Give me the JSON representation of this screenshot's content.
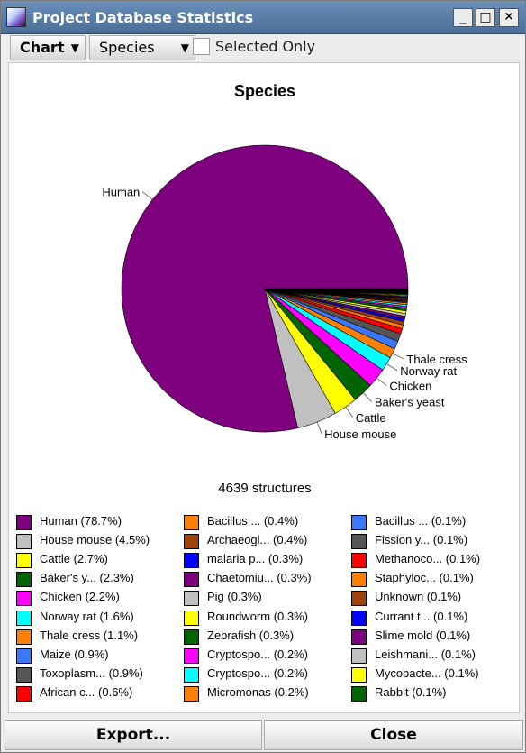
{
  "window": {
    "title": "Project Database Statistics",
    "minimize_glyph": "_",
    "maximize_glyph": "□",
    "close_glyph": "✕"
  },
  "toolbar": {
    "chart_dropdown": "Chart",
    "species_dropdown": "Species",
    "dropdown_arrow": "▼",
    "selected_only_label": "Selected Only",
    "selected_only_checked": false
  },
  "chart_data": {
    "type": "pie",
    "title": "Species",
    "total_label": "4639 structures",
    "slices": [
      {
        "label": "Human",
        "legend": "Human (78.7%)",
        "value": 78.7,
        "color": "#7f007f"
      },
      {
        "label": "House mouse",
        "legend": "House mouse (4.5%)",
        "value": 4.5,
        "color": "#c0c0c0"
      },
      {
        "label": "Cattle",
        "legend": "Cattle (2.7%)",
        "value": 2.7,
        "color": "#ffff00"
      },
      {
        "label": "Baker's yeast",
        "legend": "Baker's y... (2.3%)",
        "value": 2.3,
        "color": "#006400"
      },
      {
        "label": "Chicken",
        "legend": "Chicken (2.2%)",
        "value": 2.2,
        "color": "#ff00ff"
      },
      {
        "label": "Norway rat",
        "legend": "Norway rat (1.6%)",
        "value": 1.6,
        "color": "#00ffff"
      },
      {
        "label": "Thale cress",
        "legend": "Thale cress (1.1%)",
        "value": 1.1,
        "color": "#ff8000"
      },
      {
        "label": "Maize",
        "legend": "Maize (0.9%)",
        "value": 0.9,
        "color": "#3a78ff"
      },
      {
        "label": "Toxoplasma",
        "legend": "Toxoplasm... (0.9%)",
        "value": 0.9,
        "color": "#555555"
      },
      {
        "label": "African c",
        "legend": "African c... (0.6%)",
        "value": 0.6,
        "color": "#ff0000"
      },
      {
        "label": "Bacillus",
        "legend": "Bacillus ... (0.4%)",
        "value": 0.4,
        "color": "#ff8000"
      },
      {
        "label": "Archaeogl",
        "legend": "Archaeogl... (0.4%)",
        "value": 0.4,
        "color": "#a0400a"
      },
      {
        "label": "malaria p",
        "legend": "malaria p... (0.3%)",
        "value": 0.3,
        "color": "#0000ff"
      },
      {
        "label": "Chaetomiu",
        "legend": "Chaetomiu... (0.3%)",
        "value": 0.3,
        "color": "#7f007f"
      },
      {
        "label": "Pig",
        "legend": "Pig (0.3%)",
        "value": 0.3,
        "color": "#c0c0c0"
      },
      {
        "label": "Roundworm",
        "legend": "Roundworm (0.3%)",
        "value": 0.3,
        "color": "#ffff00"
      },
      {
        "label": "Zebrafish",
        "legend": "Zebrafish (0.3%)",
        "value": 0.3,
        "color": "#006400"
      },
      {
        "label": "Cryptospo1",
        "legend": "Cryptospo... (0.2%)",
        "value": 0.2,
        "color": "#ff00ff"
      },
      {
        "label": "Cryptospo2",
        "legend": "Cryptospo... (0.2%)",
        "value": 0.2,
        "color": "#00ffff"
      },
      {
        "label": "Micromonas",
        "legend": "Micromonas (0.2%)",
        "value": 0.2,
        "color": "#ff8000"
      },
      {
        "label": "Bacillus2",
        "legend": "Bacillus ... (0.1%)",
        "value": 0.1,
        "color": "#3a78ff"
      },
      {
        "label": "Fission y",
        "legend": "Fission y... (0.1%)",
        "value": 0.1,
        "color": "#555555"
      },
      {
        "label": "Methanoco",
        "legend": "Methanoco... (0.1%)",
        "value": 0.1,
        "color": "#ff0000"
      },
      {
        "label": "Staphyloc",
        "legend": "Staphyloc... (0.1%)",
        "value": 0.1,
        "color": "#ff8000"
      },
      {
        "label": "Unknown",
        "legend": "Unknown (0.1%)",
        "value": 0.1,
        "color": "#a0400a"
      },
      {
        "label": "Currant t",
        "legend": "Currant t... (0.1%)",
        "value": 0.1,
        "color": "#0000ff"
      },
      {
        "label": "Slime mold",
        "legend": "Slime mold (0.1%)",
        "value": 0.1,
        "color": "#7f007f"
      },
      {
        "label": "Leishmani",
        "legend": "Leishmani... (0.1%)",
        "value": 0.1,
        "color": "#c0c0c0"
      },
      {
        "label": "Mycobacte",
        "legend": "Mycobacte... (0.1%)",
        "value": 0.1,
        "color": "#ffff00"
      },
      {
        "label": "Rabbit",
        "legend": "Rabbit (0.1%)",
        "value": 0.1,
        "color": "#006400"
      }
    ],
    "remainder_color": "#000000",
    "slice_labels": [
      "Human",
      "House mouse",
      "Cattle",
      "Baker's yeast",
      "Chicken",
      "Norway rat",
      "Thale cress"
    ],
    "legend_columns": 3,
    "legend_rows": 10
  },
  "buttons": {
    "export": "Export...",
    "close": "Close"
  }
}
